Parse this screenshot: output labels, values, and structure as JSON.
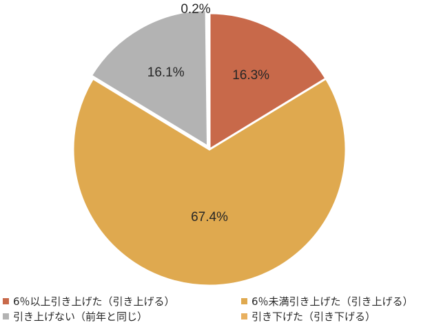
{
  "chart_data": {
    "type": "pie",
    "slices": [
      {
        "name": "6％以上引き上げた（引き上げる）",
        "value": 16.3,
        "label": "16.3%",
        "color": "#C8694A"
      },
      {
        "name": "6％未満引き上げた（引き上げる）",
        "value": 67.4,
        "label": "67.4%",
        "color": "#DFA94F"
      },
      {
        "name": "引き上げない（前年と同じ）",
        "value": 16.1,
        "label": "16.1%",
        "color": "#B3B3B3"
      },
      {
        "name": "引き下げた（引き下げる）",
        "value": 0.2,
        "label": "0.2%",
        "color": "#E8B060"
      }
    ],
    "legend_position": "bottom",
    "exploded_slice": "引き上げない（前年と同じ）"
  }
}
